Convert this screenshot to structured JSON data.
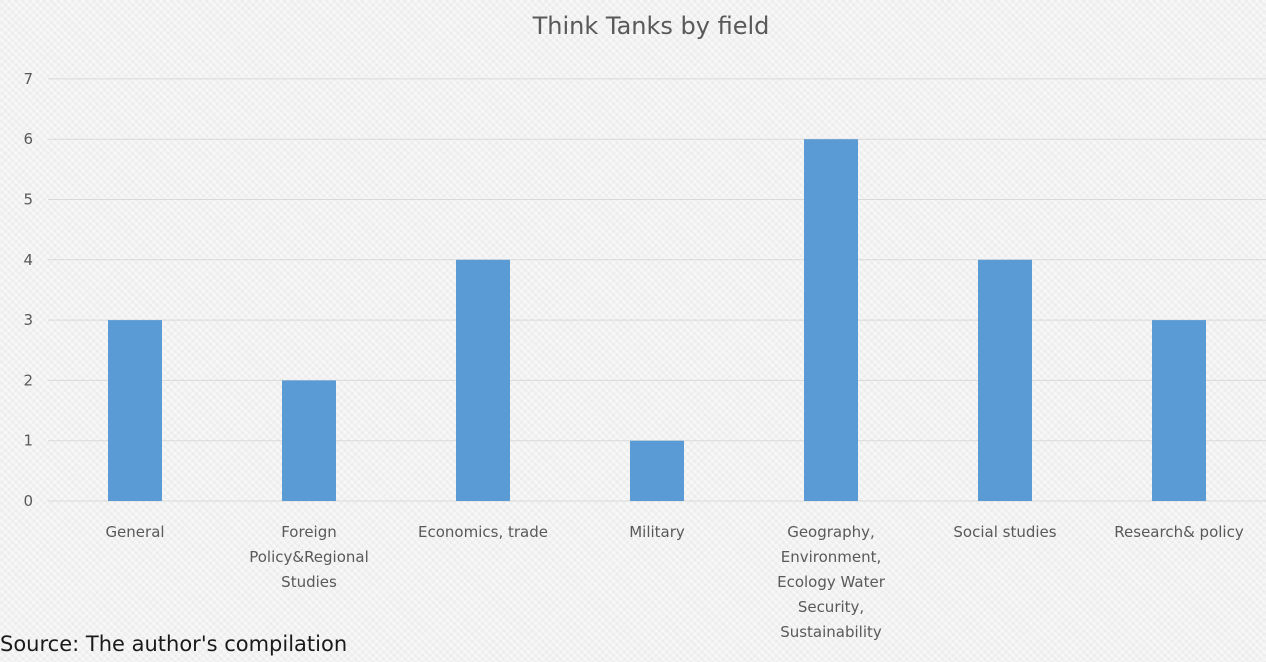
{
  "chart_data": {
    "type": "bar",
    "title": "Think Tanks by field",
    "xlabel": "",
    "ylabel": "",
    "categories": [
      [
        "General"
      ],
      [
        "Foreign",
        "Policy&Regional",
        "Studies"
      ],
      [
        "Economics, trade"
      ],
      [
        "Military"
      ],
      [
        "Geography,",
        "Environment,",
        "Ecology Water",
        "Security,",
        "Sustainability"
      ],
      [
        "Social studies"
      ],
      [
        "Research& policy"
      ]
    ],
    "values": [
      3,
      2,
      4,
      1,
      6,
      4,
      3
    ],
    "ylim": [
      0,
      7
    ],
    "yticks": [
      "0",
      "1",
      "2",
      "3",
      "4",
      "5",
      "6",
      "7"
    ],
    "grid": true,
    "legend": "none",
    "bar_color": "#5b9bd5"
  },
  "source_note": "Source: The author's compilation"
}
